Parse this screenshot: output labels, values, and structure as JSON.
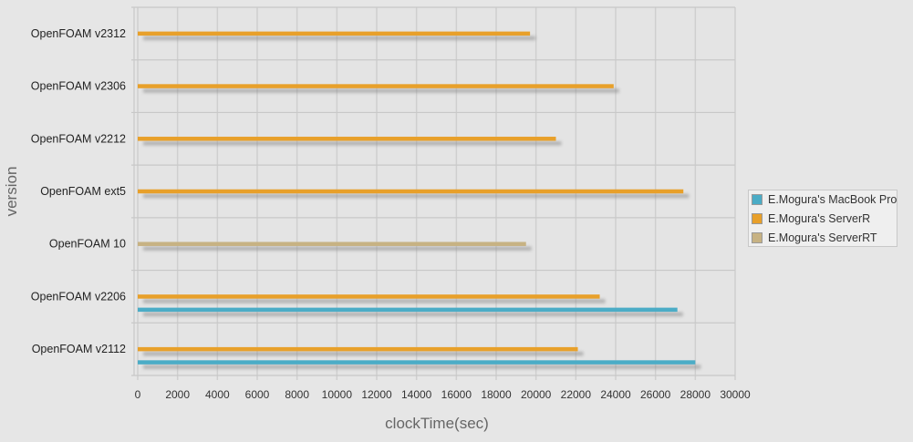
{
  "chart_data": {
    "type": "bar",
    "orientation": "horizontal",
    "title": "",
    "xlabel": "clockTime(sec)",
    "ylabel": "version",
    "xlim": [
      0,
      30000
    ],
    "xticks": [
      0,
      2000,
      4000,
      6000,
      8000,
      10000,
      12000,
      14000,
      16000,
      18000,
      20000,
      22000,
      24000,
      26000,
      28000,
      30000
    ],
    "grid": true,
    "legend_position": "right",
    "categories": [
      "OpenFOAM v2312",
      "OpenFOAM v2306",
      "OpenFOAM v2212",
      "OpenFOAM ext5",
      "OpenFOAM 10",
      "OpenFOAM v2206",
      "OpenFOAM v2112"
    ],
    "series": [
      {
        "name": "E.Mogura's MacBook Pro",
        "color": "#4bacc6",
        "values": [
          null,
          null,
          null,
          null,
          null,
          27100,
          28000
        ]
      },
      {
        "name": "E.Mogura's ServerR",
        "color": "#e8a02a",
        "values": [
          19700,
          23900,
          21000,
          27400,
          null,
          23200,
          22100
        ]
      },
      {
        "name": "E.Mogura's ServerRT",
        "color": "#c7b283",
        "values": [
          null,
          null,
          null,
          null,
          19500,
          null,
          null
        ]
      }
    ]
  }
}
